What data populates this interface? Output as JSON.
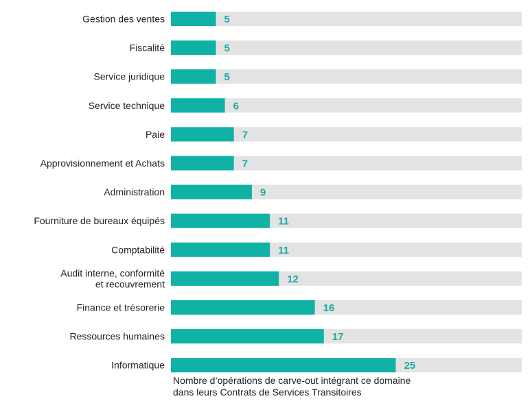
{
  "chart_data": {
    "type": "bar",
    "orientation": "horizontal",
    "categories": [
      [
        "Gestion des ventes"
      ],
      [
        "Fiscalité"
      ],
      [
        "Service juridique"
      ],
      [
        "Service technique"
      ],
      [
        "Paie"
      ],
      [
        "Approvisionnement et Achats"
      ],
      [
        "Administration"
      ],
      [
        "Fourniture de bureaux équipés"
      ],
      [
        "Comptabilité"
      ],
      [
        "Audit interne, conformité",
        "et recouvrement"
      ],
      [
        "Finance et trésorerie"
      ],
      [
        "Ressources humaines"
      ],
      [
        "Informatique"
      ]
    ],
    "values": [
      5,
      5,
      5,
      6,
      7,
      7,
      9,
      11,
      11,
      12,
      16,
      17,
      25
    ],
    "title": "",
    "xlabel": [
      "Nombre d’opérations de carve-out intégrant ce domaine",
      "dans leurs Contrats de Services Transitoires"
    ],
    "ylabel": "",
    "xlim": [
      0,
      39
    ],
    "grid": false,
    "legend": "none",
    "colors": {
      "bar": "#10B2A6",
      "track": "#E3E3E3",
      "value_label": "#1AA9A8",
      "text": "#222222"
    }
  }
}
